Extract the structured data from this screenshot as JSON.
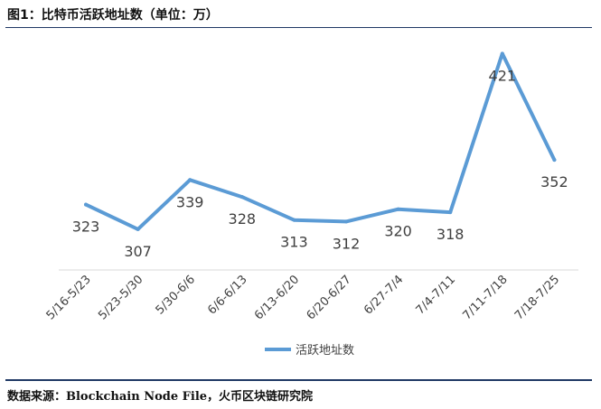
{
  "header": {
    "title": "图1：比特币活跃地址数（单位：万）"
  },
  "footer": {
    "source": "数据来源：Blockchain Node File，火币区块链研究院"
  },
  "chart_data": {
    "type": "line",
    "categories": [
      "5/16-5/23",
      "5/23-5/30",
      "5/30-6/6",
      "6/6-6/13",
      "6/13-6/20",
      "6/20-6/27",
      "6/27-7/4",
      "7/4-7/11",
      "7/11-7/18",
      "7/18-7/25"
    ],
    "series": [
      {
        "name": "活跃地址数",
        "values": [
          323,
          307,
          339,
          328,
          313,
          312,
          320,
          318,
          421,
          352
        ]
      }
    ],
    "title": "图1：比特币活跃地址数（单位：万）",
    "xlabel": "",
    "ylabel": "",
    "ylim": [
      280,
      430
    ],
    "grid": false,
    "legend": "bottom",
    "line_color": "#5b9bd5"
  }
}
